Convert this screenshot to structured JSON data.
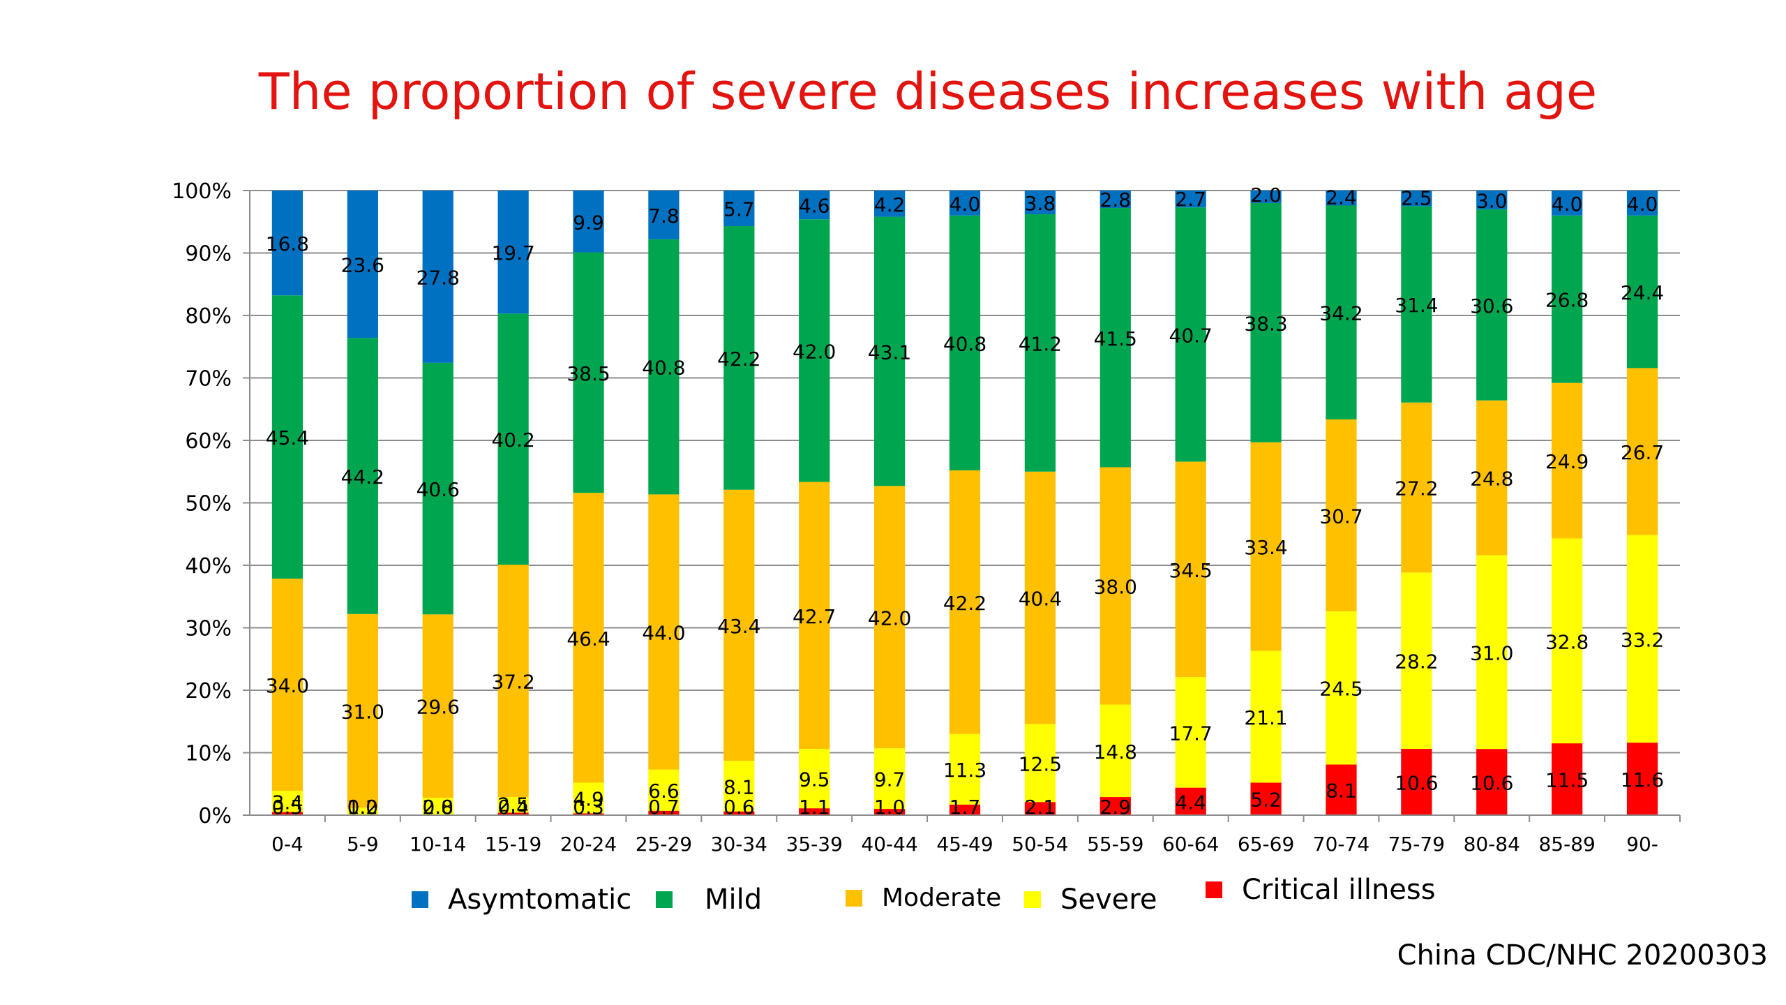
{
  "title": "The proportion of severe diseases increases with age",
  "source": "China CDC/NHC 20200303",
  "legend": [
    {
      "name": "Asymtomatic",
      "color": "#0070c0"
    },
    {
      "name": "Mild",
      "color": "#00a64f"
    },
    {
      "name": "Moderate",
      "color": "#ffc000"
    },
    {
      "name": "Severe",
      "color": "#ffff00"
    },
    {
      "name": "Critical illness",
      "color": "#ff0000"
    }
  ],
  "chart_data": {
    "type": "bar",
    "stacked": true,
    "normalized": true,
    "categories": [
      "0-4",
      "5-9",
      "10-14",
      "15-19",
      "20-24",
      "25-29",
      "30-34",
      "35-39",
      "40-44",
      "45-49",
      "50-54",
      "55-59",
      "60-64",
      "65-69",
      "70-74",
      "75-79",
      "80-84",
      "85-89",
      "90-"
    ],
    "y_ticks": [
      "0%",
      "10%",
      "20%",
      "30%",
      "40%",
      "50%",
      "60%",
      "70%",
      "80%",
      "90%",
      "100%"
    ],
    "ylim": [
      0,
      100
    ],
    "grid": true,
    "series": [
      {
        "name": "Critical illness",
        "color": "#ff0000",
        "values": [
          0.5,
          0.0,
          0.0,
          0.4,
          0.3,
          0.7,
          0.6,
          1.1,
          1.0,
          1.7,
          2.1,
          2.9,
          4.4,
          5.2,
          8.1,
          10.6,
          10.6,
          11.5,
          11.6
        ]
      },
      {
        "name": "Severe",
        "color": "#ffff00",
        "values": [
          3.4,
          1.2,
          2.8,
          2.5,
          4.9,
          6.6,
          8.1,
          9.5,
          9.7,
          11.3,
          12.5,
          14.8,
          17.7,
          21.1,
          24.5,
          28.2,
          31.0,
          32.8,
          33.2
        ]
      },
      {
        "name": "Moderate",
        "color": "#ffc000",
        "values": [
          34.0,
          31.0,
          29.6,
          37.2,
          46.4,
          44.0,
          43.4,
          42.7,
          42.0,
          42.2,
          40.4,
          38.0,
          34.5,
          33.4,
          30.7,
          27.2,
          24.8,
          24.9,
          26.7
        ]
      },
      {
        "name": "Mild",
        "color": "#00a64f",
        "values": [
          45.4,
          44.2,
          40.6,
          40.2,
          38.5,
          40.8,
          42.2,
          42.0,
          43.1,
          40.8,
          41.2,
          41.5,
          40.7,
          38.3,
          34.2,
          31.4,
          30.6,
          26.8,
          24.4
        ]
      },
      {
        "name": "Asymtomatic",
        "color": "#0070c0",
        "values": [
          16.8,
          23.6,
          27.8,
          19.7,
          9.9,
          7.8,
          5.7,
          4.6,
          4.2,
          4.0,
          3.8,
          2.8,
          2.7,
          2.0,
          2.4,
          2.5,
          3.0,
          4.0,
          4.0
        ]
      }
    ]
  }
}
